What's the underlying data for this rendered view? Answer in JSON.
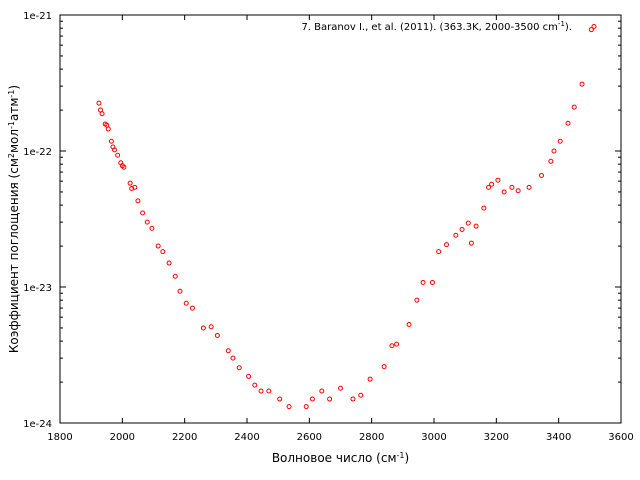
{
  "chart_data": {
    "type": "scatter",
    "xlabel": "Волновое число (см",
    "xlabel_sup": "-1",
    "xlabel_end": ")",
    "ylabel_parts": [
      "Коэффициент поглощения (см",
      "2",
      "мол",
      "-1",
      "атм",
      "-1",
      ")"
    ],
    "xlim": [
      1800,
      3600
    ],
    "ylim": [
      1e-24,
      1e-21
    ],
    "yscale": "log",
    "x_ticks": [
      "1800",
      "2000",
      "2200",
      "2400",
      "2600",
      "2800",
      "3000",
      "3200",
      "3400",
      "3600"
    ],
    "y_ticks": [
      {
        "value": 1e-24,
        "label": "1e-24"
      },
      {
        "value": 1e-23,
        "label": "1e-23"
      },
      {
        "value": 1e-22,
        "label": "1e-22"
      },
      {
        "value": 1e-21,
        "label": "1e-21"
      }
    ],
    "grid": false,
    "legend_position": "top-right",
    "series": [
      {
        "name": "7. Baranov I., et al. (2011). (363.3K, 2000-3500 cm",
        "name_sup": "-1",
        "name_end": ").",
        "color": "#ff0000",
        "marker": "circle-open",
        "points": [
          [
            1925,
            2.25e-22
          ],
          [
            1930,
            2e-22
          ],
          [
            1935,
            1.88e-22
          ],
          [
            1945,
            1.58e-22
          ],
          [
            1950,
            1.55e-22
          ],
          [
            1955,
            1.45e-22
          ],
          [
            1965,
            1.18e-22
          ],
          [
            1970,
            1.07e-22
          ],
          [
            1975,
            1.02e-22
          ],
          [
            1985,
            9.3e-23
          ],
          [
            1995,
            8.2e-23
          ],
          [
            2000,
            7.8e-23
          ],
          [
            2005,
            7.6e-23
          ],
          [
            2025,
            5.8e-23
          ],
          [
            2030,
            5.3e-23
          ],
          [
            2040,
            5.4e-23
          ],
          [
            2050,
            4.3e-23
          ],
          [
            2065,
            3.5e-23
          ],
          [
            2080,
            3e-23
          ],
          [
            2095,
            2.7e-23
          ],
          [
            2115,
            2e-23
          ],
          [
            2130,
            1.82e-23
          ],
          [
            2150,
            1.5e-23
          ],
          [
            2170,
            1.2e-23
          ],
          [
            2185,
            9.3e-24
          ],
          [
            2205,
            7.6e-24
          ],
          [
            2225,
            7e-24
          ],
          [
            2260,
            5e-24
          ],
          [
            2285,
            5.1e-24
          ],
          [
            2305,
            4.4e-24
          ],
          [
            2340,
            3.4e-24
          ],
          [
            2355,
            3e-24
          ],
          [
            2375,
            2.55e-24
          ],
          [
            2405,
            2.2e-24
          ],
          [
            2425,
            1.9e-24
          ],
          [
            2445,
            1.72e-24
          ],
          [
            2470,
            1.72e-24
          ],
          [
            2505,
            1.5e-24
          ],
          [
            2535,
            1.32e-24
          ],
          [
            2590,
            1.32e-24
          ],
          [
            2610,
            1.5e-24
          ],
          [
            2640,
            1.72e-24
          ],
          [
            2665,
            1.5e-24
          ],
          [
            2700,
            1.8e-24
          ],
          [
            2740,
            1.5e-24
          ],
          [
            2765,
            1.6e-24
          ],
          [
            2795,
            2.1e-24
          ],
          [
            2840,
            2.6e-24
          ],
          [
            2865,
            3.7e-24
          ],
          [
            2880,
            3.8e-24
          ],
          [
            2920,
            5.3e-24
          ],
          [
            2945,
            8e-24
          ],
          [
            2965,
            1.08e-23
          ],
          [
            2995,
            1.08e-23
          ],
          [
            3015,
            1.82e-23
          ],
          [
            3040,
            2.05e-23
          ],
          [
            3070,
            2.4e-23
          ],
          [
            3090,
            2.65e-23
          ],
          [
            3110,
            2.95e-23
          ],
          [
            3120,
            2.1e-23
          ],
          [
            3135,
            2.8e-23
          ],
          [
            3160,
            3.8e-23
          ],
          [
            3175,
            5.4e-23
          ],
          [
            3185,
            5.7e-23
          ],
          [
            3205,
            6.1e-23
          ],
          [
            3225,
            5e-23
          ],
          [
            3250,
            5.4e-23
          ],
          [
            3270,
            5.1e-23
          ],
          [
            3305,
            5.4e-23
          ],
          [
            3345,
            6.6e-23
          ],
          [
            3375,
            8.4e-23
          ],
          [
            3385,
            1e-22
          ],
          [
            3405,
            1.18e-22
          ],
          [
            3430,
            1.6e-22
          ],
          [
            3450,
            2.1e-22
          ],
          [
            3475,
            3.1e-22
          ],
          [
            3505,
            7.8e-22
          ]
        ]
      }
    ]
  }
}
